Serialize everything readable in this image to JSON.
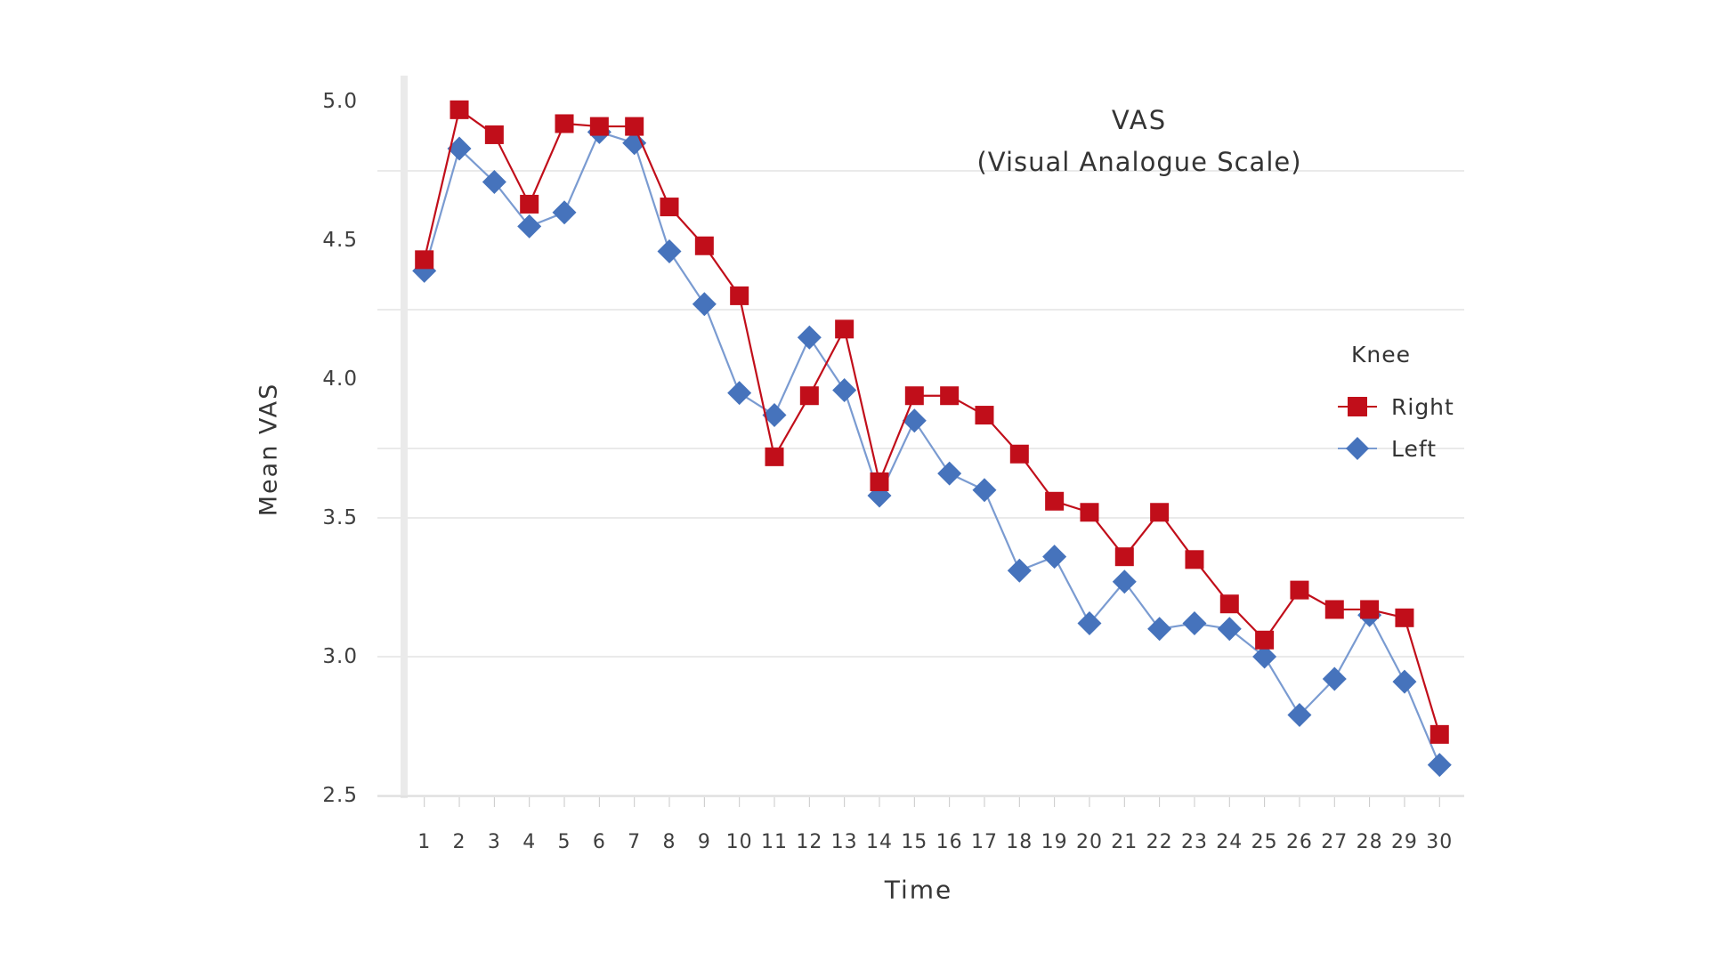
{
  "title": {
    "line1": "VAS",
    "line2": "(Visual Analogue Scale)"
  },
  "axes": {
    "y_label": "Mean VAS",
    "x_label": "Time",
    "y_tick_labels": [
      "5.0",
      "4.5",
      "4.0",
      "3.5",
      "3.0",
      "2.5"
    ],
    "y_tick_values": [
      5.0,
      4.5,
      4.0,
      3.5,
      3.0,
      2.5
    ],
    "gridline_values": [
      4.75,
      4.25,
      3.75,
      3.5,
      3.0,
      2.5
    ]
  },
  "legend": {
    "title": "Knee",
    "items": [
      {
        "label": "Right",
        "marker": "square",
        "color": "#c10e1a",
        "line_color": "#c10e1a"
      },
      {
        "label": "Left",
        "marker": "diamond",
        "color": "#4673bc",
        "line_color": "#7a9bd1"
      }
    ]
  },
  "colors": {
    "grid": "#e4e4e4",
    "axis_band": "#eaeaea",
    "x_axis_line": "#dedede",
    "tick": "#c8c8c8"
  },
  "chart_data": {
    "type": "line",
    "title": "VAS (Visual Analogue Scale)",
    "xlabel": "Time",
    "ylabel": "Mean VAS",
    "x": [
      1,
      2,
      3,
      4,
      5,
      6,
      7,
      8,
      9,
      10,
      11,
      12,
      13,
      14,
      15,
      16,
      17,
      18,
      19,
      20,
      21,
      22,
      23,
      24,
      25,
      26,
      27,
      28,
      29,
      30
    ],
    "ylim": [
      2.5,
      5.0
    ],
    "grid": "horizontal-light",
    "legend_title": "Knee",
    "legend_position": "right",
    "series": [
      {
        "name": "Right",
        "marker": "square",
        "color": "#c10e1a",
        "line_color": "#c10e1a",
        "values": [
          4.43,
          4.97,
          4.88,
          4.63,
          4.92,
          4.91,
          4.91,
          4.62,
          4.48,
          4.3,
          3.72,
          3.94,
          4.18,
          3.63,
          3.94,
          3.94,
          3.87,
          3.73,
          3.56,
          3.52,
          3.36,
          3.52,
          3.35,
          3.19,
          3.06,
          3.24,
          3.17,
          3.17,
          3.14,
          2.72
        ]
      },
      {
        "name": "Left",
        "marker": "diamond",
        "color": "#4673bc",
        "line_color": "#7a9bd1",
        "values": [
          4.39,
          4.83,
          4.71,
          4.55,
          4.6,
          4.89,
          4.85,
          4.46,
          4.27,
          3.95,
          3.87,
          4.15,
          3.96,
          3.58,
          3.85,
          3.66,
          3.6,
          3.31,
          3.36,
          3.12,
          3.27,
          3.1,
          3.12,
          3.1,
          3.0,
          2.79,
          2.92,
          3.15,
          2.91,
          2.61
        ]
      }
    ]
  }
}
